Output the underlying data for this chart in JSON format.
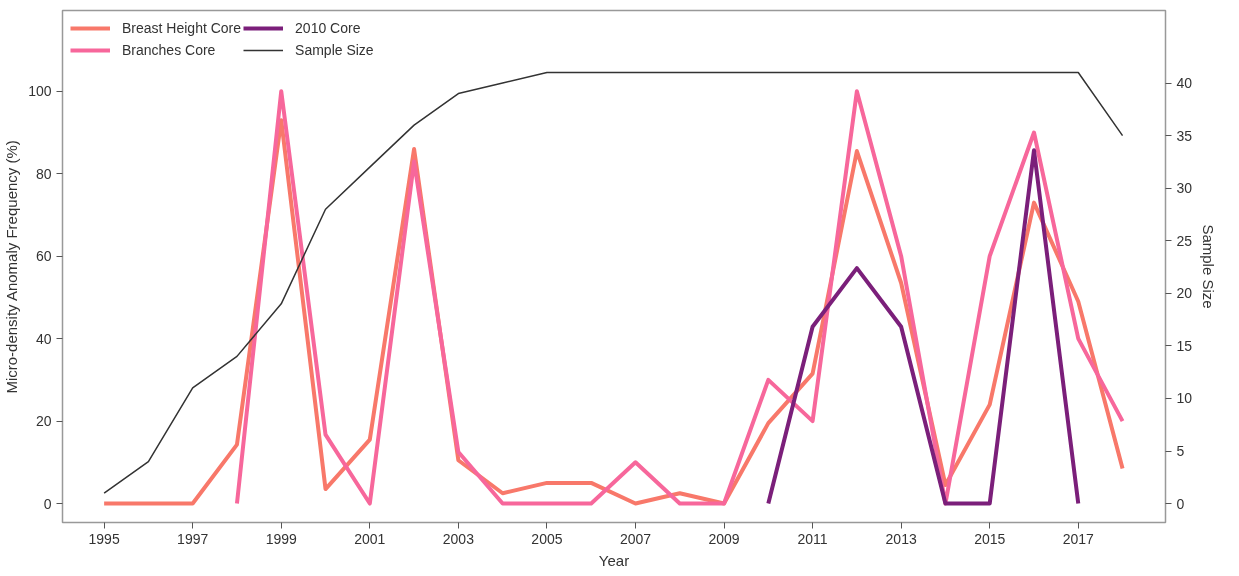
{
  "chart_data": {
    "type": "line",
    "xlabel": "Year",
    "ylabel": "Micro-density Anomaly Frequency (%)",
    "y2label": "Sample Size",
    "x": [
      1995,
      1996,
      1997,
      1998,
      1999,
      2000,
      2001,
      2002,
      2003,
      2004,
      2005,
      2006,
      2007,
      2008,
      2009,
      2010,
      2011,
      2012,
      2013,
      2014,
      2015,
      2016,
      2017,
      2018
    ],
    "series": [
      {
        "name": "Breast Height Core",
        "color": "#f8786a",
        "values": [
          0,
          0,
          0,
          14.3,
          93,
          3.5,
          15.5,
          86,
          10.5,
          2.5,
          5,
          5,
          0,
          2.5,
          0,
          19.5,
          31.5,
          85.5,
          53.5,
          4.5,
          24,
          73,
          49,
          8.5
        ]
      },
      {
        "name": "Branches Core",
        "color": "#f7679b",
        "values": [
          null,
          null,
          null,
          0,
          100,
          16.7,
          0,
          83,
          12.5,
          0,
          0,
          0,
          10,
          0,
          0,
          30,
          20,
          100,
          60,
          0,
          60,
          90,
          40,
          20
        ]
      },
      {
        "name": "2010 Core",
        "color": "#7b1f7a",
        "values": [
          null,
          null,
          null,
          null,
          null,
          null,
          null,
          null,
          null,
          null,
          null,
          null,
          null,
          null,
          null,
          0,
          42.9,
          57.1,
          42.9,
          0,
          0,
          85.7,
          0,
          null
        ]
      },
      {
        "name": "Sample Size",
        "color": "#333333",
        "axis": "y2",
        "values": [
          1,
          4,
          11,
          14,
          19,
          28,
          32,
          36,
          39,
          40,
          41,
          41,
          41,
          41,
          41,
          41,
          41,
          41,
          41,
          41,
          41,
          41,
          41,
          35
        ]
      }
    ],
    "xlim": [
      1994.06,
      2018.97
    ],
    "xticks": [
      1995,
      1997,
      1999,
      2001,
      2003,
      2005,
      2007,
      2009,
      2011,
      2013,
      2015,
      2017
    ],
    "ylim": [
      -4.6,
      119.6
    ],
    "yticks": [
      0,
      20,
      40,
      60,
      80,
      100
    ],
    "y2lim": [
      -1.8,
      46.9
    ],
    "y2ticks": [
      0,
      5,
      10,
      15,
      20,
      25,
      30,
      35,
      40
    ],
    "grid": false,
    "legend": "top left",
    "marker": "none",
    "line_style": "solid"
  }
}
